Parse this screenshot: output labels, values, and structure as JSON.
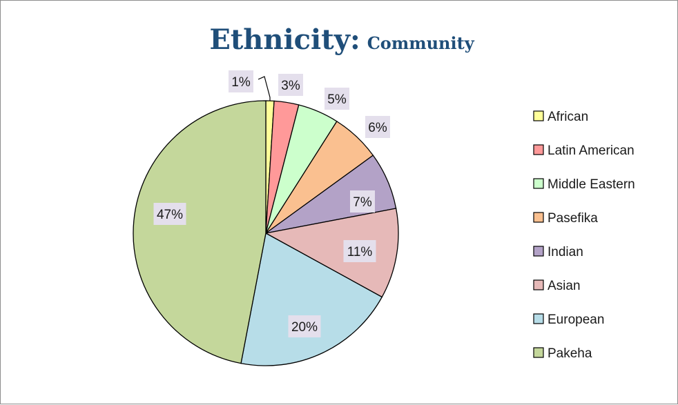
{
  "chart_data": {
    "type": "pie",
    "title": "Ethnicity:",
    "subtitle": "Community",
    "unit": "%",
    "categories": [
      "African",
      "Latin American",
      "Middle Eastern",
      "Pasefika",
      "Indian",
      "Asian",
      "European",
      "Pakeha"
    ],
    "values": [
      1,
      3,
      5,
      6,
      7,
      11,
      20,
      47
    ],
    "data_labels": [
      "1%",
      "3%",
      "5%",
      "6%",
      "7%",
      "11%",
      "20%",
      "47%"
    ],
    "colors": [
      "#ffff99",
      "#ff9999",
      "#ccffcc",
      "#fac090",
      "#b3a2c7",
      "#e6b9b8",
      "#b7dde8",
      "#c4d79b"
    ],
    "legend_position": "right",
    "start_angle": "12 o'clock",
    "direction": "clockwise"
  }
}
